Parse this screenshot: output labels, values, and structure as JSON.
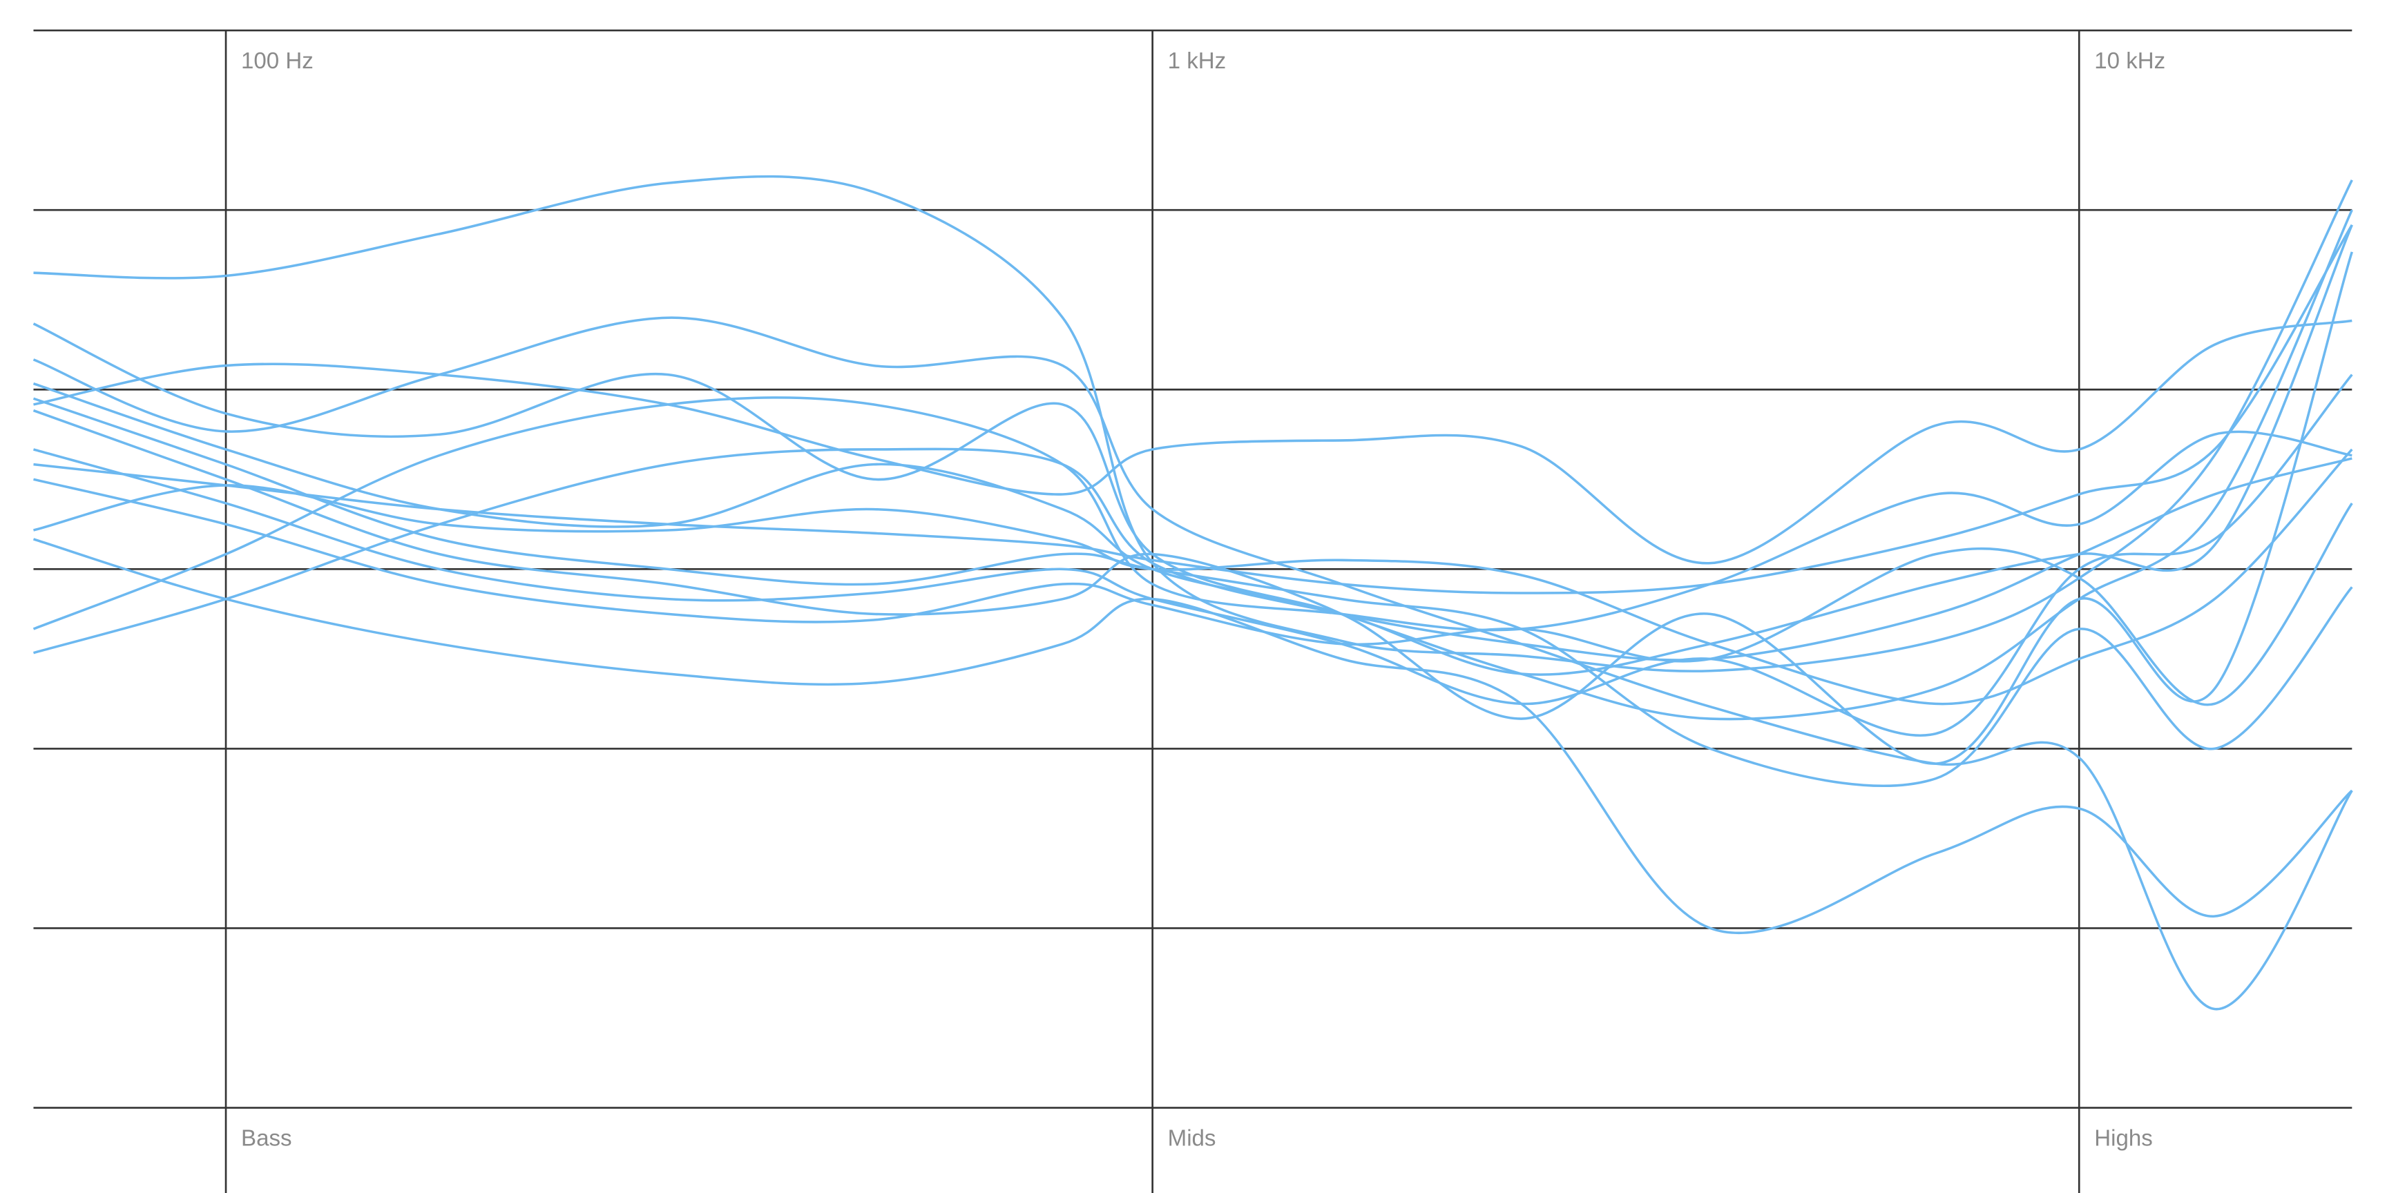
{
  "chart_data": {
    "type": "line",
    "x_scale": "log",
    "color": "#6cb8f0",
    "xlim": [
      62,
      19700
    ],
    "ylim": [
      -18,
      18
    ],
    "xticks": [
      {
        "value": 100,
        "label": "100 Hz"
      },
      {
        "value": 1000,
        "label": "1 kHz"
      },
      {
        "value": 10000,
        "label": "10 kHz"
      }
    ],
    "yticks": [
      -18,
      -12,
      -6,
      0,
      6,
      12,
      18
    ],
    "band_labels": [
      "Bass",
      "Mids",
      "Highs"
    ],
    "x": [
      62,
      100,
      170,
      300,
      500,
      800,
      1000,
      1600,
      2500,
      4000,
      7000,
      10000,
      14000,
      19700
    ],
    "series": [
      {
        "values": [
          9.9,
          9.8,
          11.2,
          12.9,
          12.6,
          8.4,
          0.2,
          -2.4,
          -2.9,
          -3.4,
          -2.4,
          -0.3,
          3.8,
          13.0
        ]
      },
      {
        "values": [
          7.0,
          4.6,
          6.5,
          8.4,
          6.8,
          6.8,
          2.0,
          -0.5,
          -2.5,
          -4.6,
          -6.5,
          -6.3,
          -14.7,
          -7.4
        ]
      },
      {
        "values": [
          8.2,
          5.2,
          4.5,
          6.5,
          3.0,
          5.5,
          0.5,
          -1.5,
          -3.5,
          -5.0,
          -4.0,
          -1.0,
          2.0,
          12.0
        ]
      },
      {
        "values": [
          5.5,
          6.8,
          6.5,
          5.5,
          3.7,
          2.5,
          4.0,
          4.3,
          4.1,
          0.2,
          4.8,
          4.0,
          7.5,
          8.3
        ]
      },
      {
        "values": [
          1.3,
          2.8,
          1.5,
          1.3,
          2.0,
          1.0,
          0.0,
          0.3,
          -0.2,
          -2.5,
          -4.5,
          -3.0,
          -1.0,
          4.0
        ]
      },
      {
        "values": [
          -2.8,
          -1.0,
          1.5,
          3.5,
          4.0,
          3.5,
          0.2,
          -1.5,
          -2.5,
          -3.0,
          -1.5,
          0.5,
          2.5,
          3.7
        ]
      },
      {
        "values": [
          -2.0,
          0.5,
          3.8,
          5.5,
          5.5,
          3.5,
          -0.5,
          -1.5,
          -2.0,
          -0.5,
          2.5,
          1.5,
          4.5,
          3.8
        ]
      },
      {
        "values": [
          5.7,
          3.5,
          1.0,
          0.0,
          -0.5,
          0.5,
          0.0,
          -1.0,
          -2.0,
          -6.0,
          -7.0,
          -2.0,
          -6.0,
          -0.6
        ]
      },
      {
        "values": [
          3.0,
          1.5,
          -0.5,
          -1.5,
          -1.7,
          -0.5,
          -1.2,
          -2.5,
          -2.0,
          -3.0,
          0.5,
          -0.3,
          -4.5,
          2.2
        ]
      },
      {
        "values": [
          1.0,
          -1.0,
          -2.5,
          -3.5,
          -3.8,
          -2.5,
          -1.0,
          -3.0,
          -4.5,
          -12.0,
          -9.5,
          -8.0,
          -11.6,
          -7.4
        ]
      },
      {
        "values": [
          5.3,
          3.0,
          0.5,
          -0.5,
          -1.5,
          -1.0,
          0.5,
          -1.5,
          -5.0,
          -1.5,
          -6.5,
          -1.0,
          -4.0,
          10.6
        ]
      },
      {
        "values": [
          4.0,
          2.2,
          0.0,
          -1.0,
          -0.8,
          0.0,
          -1.0,
          -2.5,
          -4.5,
          -3.0,
          -5.5,
          0.0,
          1.0,
          6.5
        ]
      },
      {
        "values": [
          3.5,
          2.8,
          2.0,
          1.5,
          1.2,
          0.8,
          0.3,
          -0.5,
          -0.8,
          -0.5,
          1.0,
          2.5,
          4.0,
          11.5
        ]
      },
      {
        "values": [
          6.2,
          4.0,
          2.0,
          1.5,
          3.5,
          2.0,
          0.0,
          -1.5,
          -3.5,
          -2.5,
          -0.5,
          0.5,
          0.8,
          11.5
        ]
      }
    ]
  }
}
